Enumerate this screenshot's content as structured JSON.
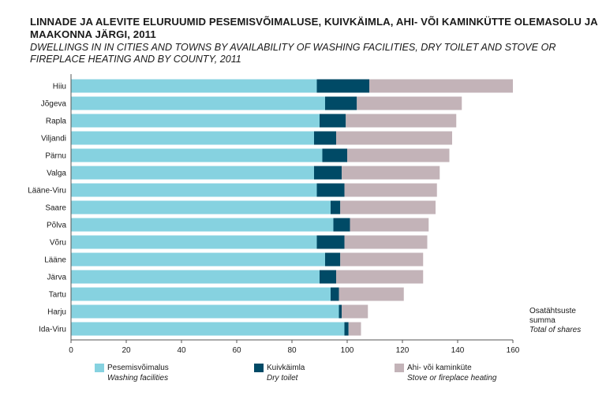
{
  "title_et": "LINNADE JA ALEVITE ELURUUMID PESEMISVÕIMALUSE, KUIVKÄIMLA, AHI- VÕI KAMINKÜTTE OLEMASOLU JA MAAKONNA JÄRGI, 2011",
  "title_en": "DWELLINGS IN IN CITIES AND TOWNS BY AVAILABILITY OF WASHING FACILITIES, DRY TOILET AND STOVE OR FIREPLACE HEATING AND BY COUNTY, 2011",
  "total_label_et_1": "Osatähtsuste",
  "total_label_et_2": "summa",
  "total_label_en": "Total of shares",
  "colors": {
    "washing": "#86d2e0",
    "dry_toilet": "#004a66",
    "stove": "#c3b3b8",
    "axis": "#555555"
  },
  "chart_data": {
    "type": "bar",
    "orientation": "horizontal",
    "stacked": true,
    "categories": [
      "Hiiu",
      "Jõgeva",
      "Rapla",
      "Viljandi",
      "Pärnu",
      "Valga",
      "Lääne-Viru",
      "Saare",
      "Põlva",
      "Võru",
      "Lääne",
      "Järva",
      "Tartu",
      "Harju",
      "Ida-Viru"
    ],
    "series": [
      {
        "name_et": "Pesemisvõimalus",
        "name_en": "Washing facilities",
        "values": [
          89,
          92,
          90,
          88,
          91,
          88,
          89,
          94,
          95,
          89,
          92,
          90,
          94,
          97,
          99
        ]
      },
      {
        "name_et": "Kuivkäimla",
        "name_en": "Dry toilet",
        "values": [
          19,
          11.5,
          9.5,
          8,
          9,
          10,
          10,
          3.5,
          6,
          10,
          5.5,
          6,
          3,
          1,
          1.5
        ]
      },
      {
        "name_et": "Ahi- või kaminküte",
        "name_en": "Stove or fireplace heating",
        "values": [
          52,
          38,
          40,
          42,
          37,
          35.5,
          33.5,
          34.5,
          28.5,
          30,
          30,
          31.5,
          23.5,
          9.5,
          4.5
        ]
      }
    ],
    "xlim": [
      0,
      160
    ],
    "xticks": [
      0,
      20,
      40,
      60,
      80,
      100,
      120,
      140,
      160
    ],
    "xlabel": "",
    "ylabel": "",
    "grid": false,
    "legend_position": "bottom"
  }
}
